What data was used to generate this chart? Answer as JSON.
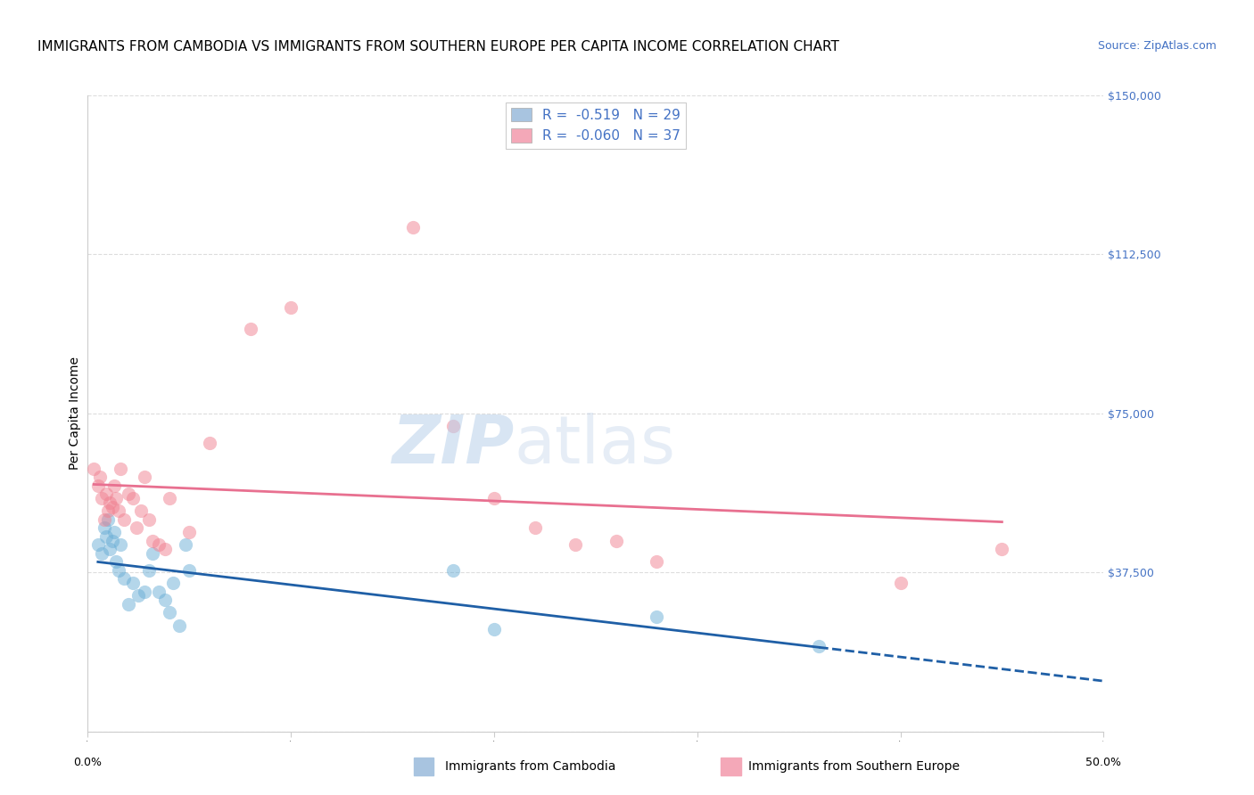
{
  "title": "IMMIGRANTS FROM CAMBODIA VS IMMIGRANTS FROM SOUTHERN EUROPE PER CAPITA INCOME CORRELATION CHART",
  "source": "Source: ZipAtlas.com",
  "ylabel": "Per Capita Income",
  "xlim": [
    0,
    0.5
  ],
  "ylim": [
    0,
    150000
  ],
  "yticks": [
    0,
    37500,
    75000,
    112500,
    150000
  ],
  "ytick_labels": [
    "",
    "$37,500",
    "$75,000",
    "$112,500",
    "$150,000"
  ],
  "xticks": [
    0.0,
    0.1,
    0.2,
    0.3,
    0.4,
    0.5
  ],
  "legend_label1": "R =  -0.519   N = 29",
  "legend_label2": "R =  -0.060   N = 37",
  "legend_color1": "#a8c4e0",
  "legend_color2": "#f4a8b8",
  "series1_color": "#6aaed6",
  "series2_color": "#f08090",
  "trend1_color": "#1f5fa6",
  "trend2_color": "#e87090",
  "background_color": "#ffffff",
  "grid_color": "#dddddd",
  "series1_x": [
    0.005,
    0.007,
    0.008,
    0.009,
    0.01,
    0.011,
    0.012,
    0.013,
    0.014,
    0.015,
    0.016,
    0.018,
    0.02,
    0.022,
    0.025,
    0.028,
    0.03,
    0.032,
    0.035,
    0.038,
    0.04,
    0.042,
    0.045,
    0.048,
    0.05,
    0.18,
    0.2,
    0.28,
    0.36
  ],
  "series1_y": [
    44000,
    42000,
    48000,
    46000,
    50000,
    43000,
    45000,
    47000,
    40000,
    38000,
    44000,
    36000,
    30000,
    35000,
    32000,
    33000,
    38000,
    42000,
    33000,
    31000,
    28000,
    35000,
    25000,
    44000,
    38000,
    38000,
    24000,
    27000,
    20000
  ],
  "series2_x": [
    0.003,
    0.005,
    0.006,
    0.007,
    0.008,
    0.009,
    0.01,
    0.011,
    0.012,
    0.013,
    0.014,
    0.015,
    0.016,
    0.018,
    0.02,
    0.022,
    0.024,
    0.026,
    0.028,
    0.03,
    0.032,
    0.035,
    0.038,
    0.04,
    0.05,
    0.06,
    0.08,
    0.1,
    0.16,
    0.18,
    0.2,
    0.22,
    0.24,
    0.26,
    0.28,
    0.4,
    0.45
  ],
  "series2_y": [
    62000,
    58000,
    60000,
    55000,
    50000,
    56000,
    52000,
    54000,
    53000,
    58000,
    55000,
    52000,
    62000,
    50000,
    56000,
    55000,
    48000,
    52000,
    60000,
    50000,
    45000,
    44000,
    43000,
    55000,
    47000,
    68000,
    95000,
    100000,
    119000,
    72000,
    55000,
    48000,
    44000,
    45000,
    40000,
    35000,
    43000
  ],
  "title_fontsize": 11,
  "axis_fontsize": 10,
  "tick_fontsize": 9,
  "legend_fontsize": 11,
  "marker_size": 120,
  "marker_alpha": 0.5,
  "axis_color": "#4472c4",
  "bottom_legend1": "Immigrants from Cambodia",
  "bottom_legend2": "Immigrants from Southern Europe"
}
